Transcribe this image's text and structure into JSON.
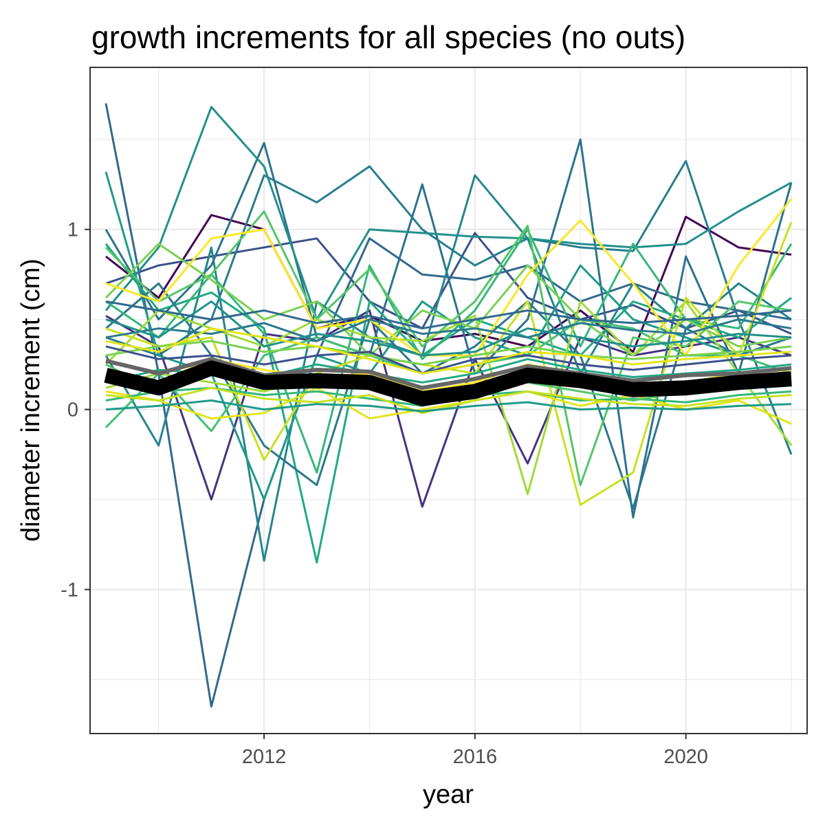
{
  "chart_data": {
    "type": "line",
    "title": "growth increments for all species (no outs)",
    "xlabel": "year",
    "ylabel": "diameter increment (cm)",
    "xlim": [
      2008.7,
      2022.3
    ],
    "ylim": [
      -1.8,
      1.9
    ],
    "x_ticks": [
      2012,
      2016,
      2020
    ],
    "x_tick_labels": [
      "2012",
      "2016",
      "2020"
    ],
    "y_ticks": [
      -1,
      0,
      1
    ],
    "y_tick_labels": [
      "-1",
      "0",
      "1"
    ],
    "grid": true,
    "legend": "none",
    "x": [
      2009,
      2010,
      2011,
      2012,
      2013,
      2014,
      2015,
      2016,
      2017,
      2018,
      2019,
      2020,
      2021,
      2022
    ],
    "series": [
      {
        "color": "#440154",
        "values": [
          0.85,
          0.62,
          1.08,
          1.0,
          0.45,
          0.52,
          0.38,
          0.42,
          0.35,
          0.55,
          0.32,
          1.07,
          0.9,
          0.86
        ]
      },
      {
        "color": "#46337e",
        "values": [
          0.52,
          0.35,
          -0.5,
          0.42,
          0.38,
          0.55,
          -0.54,
          0.28,
          -0.3,
          0.4,
          0.3,
          0.35,
          0.4,
          0.3
        ]
      },
      {
        "color": "#3b518b",
        "values": [
          0.7,
          0.8,
          0.85,
          0.9,
          0.95,
          0.6,
          0.45,
          0.98,
          0.62,
          0.5,
          0.58,
          0.45,
          0.55,
          0.42
        ]
      },
      {
        "color": "#31688e",
        "values": [
          1.7,
          0.2,
          -1.65,
          -0.5,
          0.3,
          0.95,
          0.75,
          0.72,
          0.8,
          0.6,
          0.7,
          0.6,
          0.55,
          0.5
        ]
      },
      {
        "color": "#2c728e",
        "values": [
          1.0,
          0.5,
          0.8,
          1.48,
          0.4,
          0.3,
          1.25,
          0.2,
          0.5,
          1.5,
          -0.6,
          0.85,
          0.2,
          1.26
        ]
      },
      {
        "color": "#287d8e",
        "values": [
          0.4,
          0.3,
          0.5,
          1.3,
          1.15,
          1.35,
          1.0,
          0.8,
          0.95,
          0.9,
          0.88,
          1.38,
          0.5,
          -0.25
        ]
      },
      {
        "color": "#21908c",
        "values": [
          0.55,
          0.9,
          1.68,
          1.35,
          0.5,
          1.0,
          0.98,
          0.96,
          0.95,
          0.92,
          0.9,
          0.92,
          1.1,
          1.26
        ]
      },
      {
        "color": "#25858e",
        "values": [
          0.3,
          -0.2,
          0.9,
          -0.84,
          0.6,
          0.4,
          0.3,
          1.3,
          0.95,
          0.2,
          0.7,
          0.45,
          0.7,
          0.5
        ]
      },
      {
        "color": "#1f9a8a",
        "values": [
          1.32,
          0.3,
          0.2,
          -0.5,
          0.3,
          0.2,
          0.6,
          0.4,
          0.3,
          0.8,
          0.5,
          0.4,
          0.3,
          0.4
        ]
      },
      {
        "color": "#22a884",
        "values": [
          0.92,
          0.55,
          0.65,
          0.45,
          -0.85,
          0.6,
          0.3,
          0.5,
          0.4,
          0.3,
          0.6,
          0.5,
          0.4,
          0.62
        ]
      },
      {
        "color": "#2a788e",
        "values": [
          0.45,
          0.7,
          0.3,
          -0.2,
          -0.42,
          0.5,
          0.2,
          0.35,
          0.6,
          0.3,
          -0.55,
          0.45,
          0.3,
          0.4
        ]
      },
      {
        "color": "#35b779",
        "values": [
          0.6,
          0.4,
          0.75,
          0.42,
          -0.35,
          0.8,
          0.28,
          0.55,
          1.0,
          0.35,
          0.92,
          0.5,
          0.45,
          0.92
        ]
      },
      {
        "color": "#44bf70",
        "values": [
          -0.1,
          0.2,
          -0.12,
          0.3,
          0.4,
          0.3,
          0.2,
          0.25,
          0.3,
          0.5,
          0.45,
          0.3,
          0.3,
          0.2
        ]
      },
      {
        "color": "#54c568",
        "values": [
          0.9,
          0.6,
          0.75,
          1.1,
          0.5,
          0.78,
          0.35,
          0.6,
          1.02,
          -0.42,
          0.4,
          0.35,
          0.6,
          0.55
        ]
      },
      {
        "color": "#7ad151",
        "values": [
          0.62,
          0.92,
          0.72,
          0.5,
          0.6,
          0.3,
          0.55,
          0.45,
          0.8,
          0.5,
          0.3,
          0.5,
          0.35,
          0.4
        ]
      },
      {
        "color": "#a0da39",
        "values": [
          0.25,
          0.55,
          0.45,
          0.35,
          0.5,
          0.4,
          0.38,
          0.52,
          -0.47,
          0.6,
          0.3,
          0.6,
          0.2,
          -0.2
        ]
      },
      {
        "color": "#c8e020",
        "values": [
          0.45,
          0.35,
          0.4,
          -0.28,
          0.2,
          0.3,
          0.25,
          0.2,
          0.6,
          -0.53,
          -0.35,
          0.62,
          0.3,
          1.04
        ]
      },
      {
        "color": "#fde725",
        "values": [
          0.7,
          0.6,
          0.95,
          1.0,
          0.45,
          0.5,
          0.3,
          0.3,
          0.75,
          1.05,
          0.7,
          0.3,
          0.8,
          1.17
        ]
      },
      {
        "color": "#e5e419",
        "values": [
          0.1,
          0.05,
          -0.05,
          -0.02,
          0.12,
          -0.05,
          0.0,
          0.05,
          0.1,
          0.02,
          0.08,
          0.0,
          0.05,
          -0.08
        ]
      },
      {
        "color": "#2a788e",
        "values": [
          0.4,
          0.45,
          0.42,
          0.48,
          0.38,
          0.5,
          0.42,
          0.45,
          0.4,
          0.48,
          0.44,
          0.42,
          0.5,
          0.45
        ]
      },
      {
        "color": "#22a884",
        "values": [
          0.15,
          0.22,
          0.2,
          0.18,
          0.25,
          0.2,
          0.15,
          0.2,
          0.28,
          0.22,
          0.18,
          0.2,
          0.22,
          0.25
        ]
      },
      {
        "color": "#35b779",
        "values": [
          0.05,
          0.1,
          0.12,
          0.08,
          0.1,
          0.06,
          0.02,
          0.08,
          0.1,
          0.05,
          0.06,
          0.04,
          0.08,
          0.1
        ]
      },
      {
        "color": "#7ad151",
        "values": [
          0.3,
          0.35,
          0.38,
          0.32,
          0.35,
          0.3,
          0.25,
          0.3,
          0.35,
          0.3,
          0.28,
          0.3,
          0.32,
          0.35
        ]
      },
      {
        "color": "#fde725",
        "values": [
          0.2,
          0.15,
          0.28,
          0.22,
          0.18,
          0.2,
          0.1,
          0.15,
          0.25,
          0.2,
          0.12,
          0.15,
          0.2,
          0.22
        ]
      },
      {
        "color": "#c8e020",
        "values": [
          0.08,
          0.05,
          0.12,
          0.06,
          0.04,
          0.08,
          -0.02,
          0.05,
          0.1,
          0.06,
          0.03,
          0.02,
          0.06,
          0.08
        ]
      },
      {
        "color": "#1f9a8a",
        "values": [
          0.0,
          0.02,
          0.05,
          0.0,
          0.03,
          0.02,
          -0.01,
          0.02,
          0.04,
          0.0,
          0.01,
          0.0,
          0.02,
          0.03
        ]
      },
      {
        "color": "#21908c",
        "values": [
          0.5,
          0.4,
          0.6,
          0.35,
          0.42,
          0.38,
          0.3,
          0.32,
          0.45,
          0.4,
          0.35,
          0.38,
          0.42,
          0.4
        ]
      },
      {
        "color": "#3b518b",
        "values": [
          0.35,
          0.28,
          0.3,
          0.25,
          0.3,
          0.32,
          0.2,
          0.28,
          0.3,
          0.25,
          0.22,
          0.25,
          0.28,
          0.3
        ]
      },
      {
        "color": "#a0da39",
        "values": [
          0.12,
          0.2,
          0.15,
          0.1,
          0.18,
          0.12,
          0.05,
          0.12,
          0.18,
          0.14,
          0.1,
          0.12,
          0.15,
          0.18
        ]
      },
      {
        "color": "#54c568",
        "values": [
          0.25,
          0.1,
          0.2,
          0.15,
          0.12,
          0.15,
          0.08,
          0.1,
          0.15,
          0.1,
          0.05,
          0.1,
          0.12,
          0.15
        ]
      },
      {
        "color": "#e5e419",
        "values": [
          0.38,
          0.32,
          0.45,
          0.4,
          0.35,
          0.28,
          0.2,
          0.25,
          0.32,
          0.3,
          0.25,
          0.28,
          0.3,
          0.32
        ]
      },
      {
        "color": "#31688e",
        "values": [
          0.6,
          0.55,
          0.5,
          0.55,
          0.48,
          0.52,
          0.45,
          0.5,
          0.55,
          0.5,
          0.48,
          0.5,
          0.52,
          0.55
        ]
      }
    ],
    "summary_lines": [
      {
        "color": "#000000",
        "values": [
          0.19,
          0.12,
          0.23,
          0.15,
          0.16,
          0.15,
          0.06,
          0.1,
          0.19,
          0.16,
          0.11,
          0.12,
          0.15,
          0.17
        ]
      },
      {
        "color": "#666666",
        "values": [
          0.27,
          0.2,
          0.28,
          0.19,
          0.22,
          0.21,
          0.12,
          0.17,
          0.24,
          0.2,
          0.16,
          0.19,
          0.2,
          0.23
        ]
      }
    ]
  }
}
